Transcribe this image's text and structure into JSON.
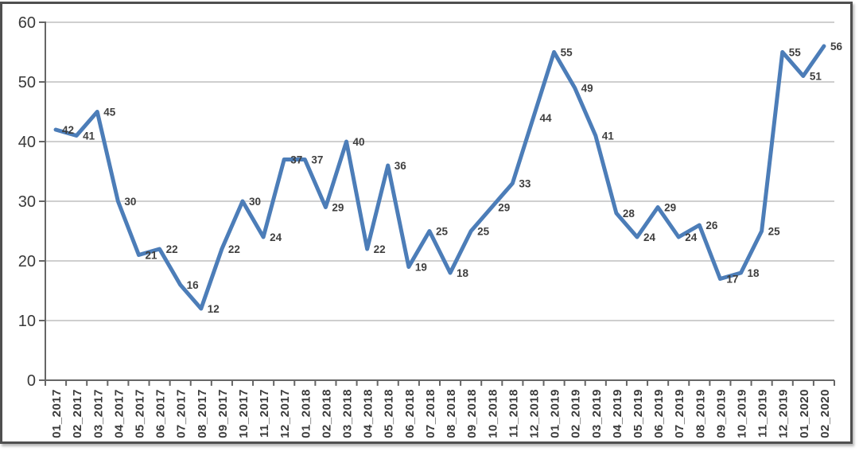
{
  "chart_data": {
    "type": "line",
    "title": "",
    "xlabel": "",
    "ylabel": "",
    "categories": [
      "01_2017",
      "02_2017",
      "03_2017",
      "04_2017",
      "05_2017",
      "06_2017",
      "07_2017",
      "08_2017",
      "09_2017",
      "10_2017",
      "11_2017",
      "12_2017",
      "01_2018",
      "02_2018",
      "03_2018",
      "04_2018",
      "05_2018",
      "06_2018",
      "07_2018",
      "08_2018",
      "09_2018",
      "10_2018",
      "11_2018",
      "12_2018",
      "01_2019",
      "02_2019",
      "03_2019",
      "04_2019",
      "05_2019",
      "06_2019",
      "07_2019",
      "08_2019",
      "09_2019",
      "10_2019",
      "11_2019",
      "12_2019",
      "01_2020",
      "02_2020"
    ],
    "values": [
      42,
      41,
      45,
      30,
      21,
      22,
      16,
      12,
      22,
      30,
      24,
      37,
      37,
      29,
      40,
      22,
      36,
      19,
      25,
      18,
      25,
      29,
      33,
      44,
      55,
      49,
      41,
      28,
      24,
      29,
      24,
      26,
      17,
      18,
      25,
      55,
      51,
      56
    ],
    "ylim": [
      0,
      60
    ],
    "yticks": [
      0,
      10,
      20,
      30,
      40,
      50,
      60
    ],
    "grid": "horizontal",
    "legend_position": "none",
    "data_labels_visible": true,
    "x_label_rotation_degrees": 90,
    "colors": {
      "line": "#4c7db8",
      "grid": "#bfbfbf",
      "axis": "#666666",
      "tick": "#666666",
      "label_text": "#3f3f3f",
      "axis_text": "#3a3a3a",
      "frame_border": "#4f4f4f",
      "background": "#ffffff"
    }
  }
}
